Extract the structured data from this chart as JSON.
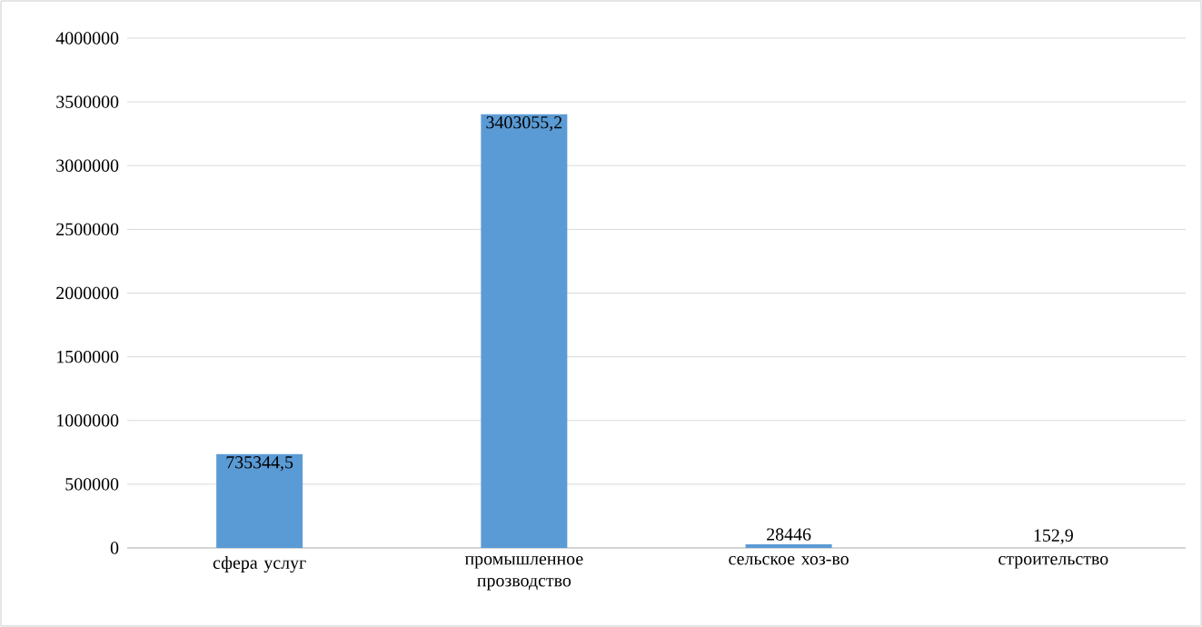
{
  "chart_data": {
    "type": "bar",
    "categories": [
      "сфера услуг",
      "промышленное прозводство",
      "сельское хоз-во",
      "строительство"
    ],
    "values": [
      735344.5,
      3403055.2,
      28446,
      152.9
    ],
    "value_labels": [
      "735344,5",
      "3403055,2",
      "28446",
      "152,9"
    ],
    "color": "#5b9bd5",
    "ylim": [
      0,
      4000000
    ],
    "yticks": [
      0,
      500000,
      1000000,
      1500000,
      2000000,
      2500000,
      3000000,
      3500000,
      4000000
    ],
    "grid": "y"
  }
}
